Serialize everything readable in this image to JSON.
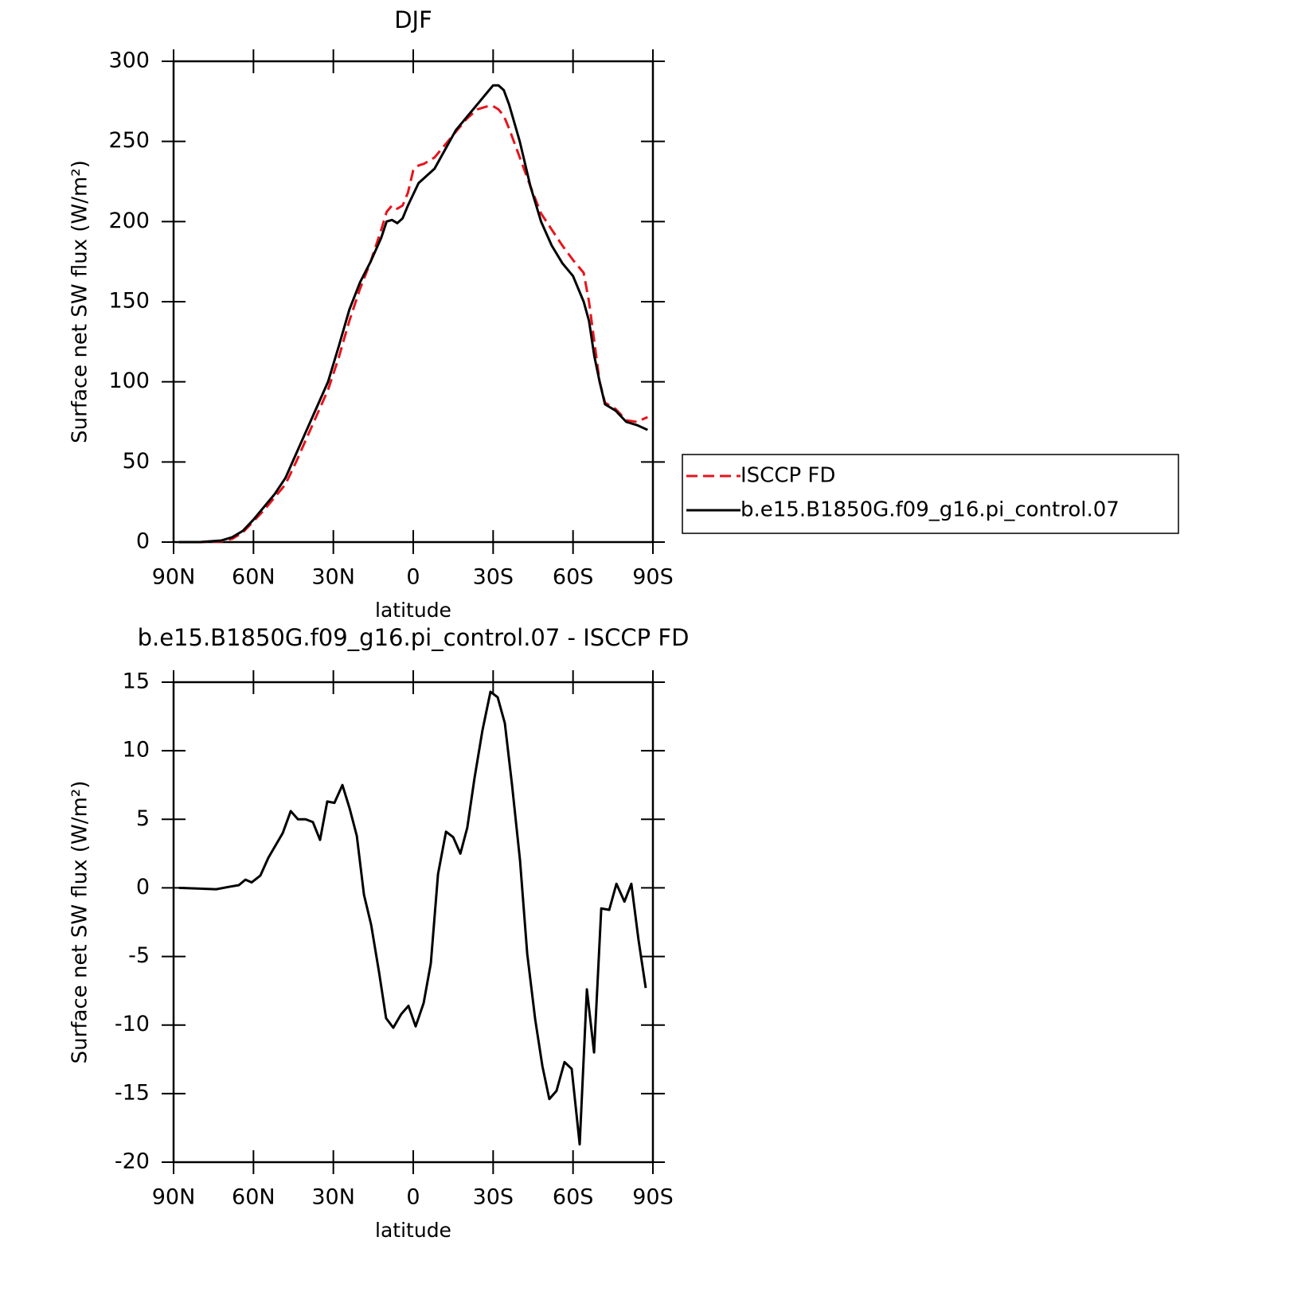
{
  "chart_data": [
    {
      "type": "line",
      "title": "DJF",
      "x_label": "latitude",
      "y_label": "Surface net SW flux (W/m²)",
      "x": [
        88,
        80,
        72,
        68,
        64,
        60,
        56,
        52,
        48,
        44,
        40,
        36,
        32,
        28,
        24,
        20,
        16,
        12,
        10,
        8,
        6,
        4,
        2,
        0,
        -2,
        -4,
        -8,
        -12,
        -16,
        -20,
        -24,
        -28,
        -30,
        -32,
        -34,
        -36,
        -40,
        -44,
        -48,
        -52,
        -56,
        -60,
        -64,
        -66,
        -68,
        -70,
        -72,
        -76,
        -80,
        -84,
        -88
      ],
      "series": [
        {
          "name": "ISCCP FD",
          "color": "#e8141c",
          "style": "dashed",
          "values": [
            0,
            0,
            0.5,
            2,
            6,
            13,
            20,
            28,
            36,
            50,
            65,
            80,
            95,
            115,
            138,
            158,
            175,
            195,
            206,
            210,
            208,
            210,
            218,
            232,
            235,
            236,
            240,
            248,
            256,
            264,
            270,
            272,
            272,
            270,
            266,
            258,
            240,
            222,
            205,
            195,
            185,
            176,
            168,
            150,
            125,
            100,
            87,
            83,
            76,
            75,
            78
          ]
        },
        {
          "name": "b.e15.B1850G.f09_g16.pi_control.07",
          "color": "#000000",
          "style": "solid",
          "values": [
            0,
            0,
            1,
            3,
            7,
            14,
            22,
            30,
            40,
            55,
            70,
            85,
            100,
            122,
            145,
            162,
            175,
            190,
            200,
            201,
            199,
            202,
            210,
            217,
            224,
            227,
            233,
            245,
            257,
            265,
            273,
            281,
            285,
            285,
            282,
            273,
            250,
            222,
            200,
            185,
            174,
            166,
            150,
            138,
            116,
            100,
            86,
            82,
            75,
            73,
            70
          ]
        }
      ],
      "xlim": [
        90,
        -90
      ],
      "xticks": [
        {
          "value": 90,
          "label": "90N"
        },
        {
          "value": 60,
          "label": "60N"
        },
        {
          "value": 30,
          "label": "30N"
        },
        0,
        {
          "value": -30,
          "label": "30S"
        },
        {
          "value": -60,
          "label": "60S"
        },
        {
          "value": -90,
          "label": "90S"
        }
      ],
      "ylim": [
        0,
        300
      ],
      "yticks": [
        0,
        50,
        100,
        150,
        200,
        250,
        300
      ],
      "legend": "right"
    },
    {
      "type": "line",
      "title": "b.e15.B1850G.f09_g16.pi_control.07 - ISCCP FD",
      "x_label": "latitude",
      "y_label": "Surface net SW flux (W/m²)",
      "x": [
        88,
        74,
        68.5,
        65.5,
        63,
        60.7,
        57.4,
        54.4,
        51.7,
        49,
        46,
        43.3,
        40.4,
        37.7,
        35,
        32.3,
        29.6,
        26.6,
        23.9,
        21.2,
        18.5,
        15.8,
        12.8,
        10.2,
        7.5,
        4.5,
        1.8,
        -0.9,
        -3.9,
        -6.6,
        -9.3,
        -12.3,
        -15,
        -17.7,
        -20.3,
        -23,
        -26,
        -29,
        -31.7,
        -34.4,
        -37.1,
        -40.1,
        -42.8,
        -45.8,
        -48.5,
        -51.1,
        -53.8,
        -56.8,
        -59.5,
        -62.5,
        -65.2,
        -67.9,
        -70.6,
        -73.6,
        -76.3,
        -79.3,
        -81.9,
        -84.6,
        -87.3
      ],
      "series": [
        {
          "color": "#000000",
          "style": "solid",
          "values": [
            0,
            -0.1,
            0.1,
            0.2,
            0.6,
            0.4,
            0.9,
            2.2,
            3.1,
            4,
            5.6,
            5,
            5,
            4.8,
            3.5,
            6.3,
            6.2,
            7.5,
            5.8,
            3.8,
            -0.5,
            -2.7,
            -6.2,
            -9.5,
            -10.2,
            -9.2,
            -8.6,
            -10.1,
            -8.4,
            -5.5,
            1,
            4.1,
            3.7,
            2.5,
            4.4,
            8,
            11.5,
            14.3,
            13.9,
            12,
            7.5,
            2,
            -4.8,
            -9.6,
            -13,
            -15.4,
            -14.8,
            -12.7,
            -13.2,
            -18.7,
            -7.4,
            -12,
            -1.5,
            -1.6,
            0.3,
            -1,
            0.3,
            -3.8,
            -7.3
          ]
        }
      ],
      "xlim": [
        90,
        -90
      ],
      "xticks": [
        {
          "value": 90,
          "label": "90N"
        },
        {
          "value": 60,
          "label": "60N"
        },
        {
          "value": 30,
          "label": "30N"
        },
        0,
        {
          "value": -30,
          "label": "30S"
        },
        {
          "value": -60,
          "label": "60S"
        },
        {
          "value": -90,
          "label": "90S"
        }
      ],
      "ylim": [
        -20,
        15
      ],
      "yticks": [
        -20,
        -15,
        -10,
        -5,
        0,
        5,
        10,
        15
      ]
    }
  ]
}
